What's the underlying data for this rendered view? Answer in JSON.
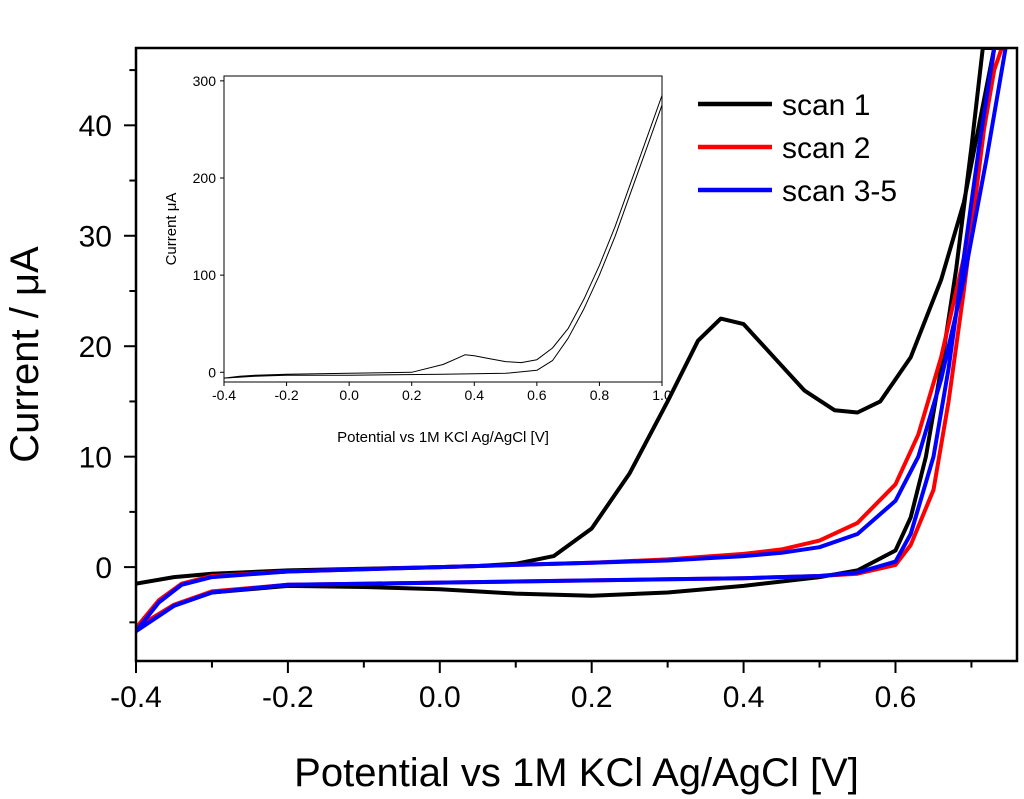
{
  "chart_data": [
    {
      "type": "line",
      "xlabel": "Potential vs 1M KCl Ag/AgCl [V]",
      "ylabel": "Current / μA",
      "xlim": [
        -0.4,
        0.76
      ],
      "ylim": [
        -8.5,
        47
      ],
      "x_ticks": [
        -0.4,
        -0.2,
        0.0,
        0.2,
        0.4,
        0.6
      ],
      "x_tick_labels": [
        "-0.4",
        "-0.2",
        "0.0",
        "0.2",
        "0.4",
        "0.6"
      ],
      "y_ticks": [
        0,
        10,
        20,
        30,
        40
      ],
      "y_tick_labels": [
        "0",
        "10",
        "20",
        "30",
        "40"
      ],
      "grid": false,
      "legend_position": "top-right",
      "series": [
        {
          "name": "scan 1",
          "color": "#000000",
          "points": [
            [
              -0.4,
              -1.5
            ],
            [
              -0.35,
              -0.9
            ],
            [
              -0.3,
              -0.6
            ],
            [
              -0.2,
              -0.3
            ],
            [
              -0.1,
              -0.15
            ],
            [
              0.0,
              0.0
            ],
            [
              0.05,
              0.1
            ],
            [
              0.1,
              0.3
            ],
            [
              0.15,
              1.0
            ],
            [
              0.2,
              3.5
            ],
            [
              0.25,
              8.5
            ],
            [
              0.3,
              15.0
            ],
            [
              0.34,
              20.5
            ],
            [
              0.37,
              22.5
            ],
            [
              0.4,
              22.0
            ],
            [
              0.44,
              19.0
            ],
            [
              0.48,
              16.0
            ],
            [
              0.52,
              14.2
            ],
            [
              0.55,
              14.0
            ],
            [
              0.58,
              15.0
            ],
            [
              0.62,
              19.0
            ],
            [
              0.66,
              26.0
            ],
            [
              0.69,
              33.0
            ],
            [
              0.71,
              40.0
            ],
            [
              0.73,
              47.0
            ],
            [
              0.715,
              47.0
            ],
            [
              0.7,
              38.0
            ],
            [
              0.68,
              27.0
            ],
            [
              0.66,
              18.0
            ],
            [
              0.64,
              10.0
            ],
            [
              0.62,
              4.5
            ],
            [
              0.6,
              1.5
            ],
            [
              0.55,
              -0.3
            ],
            [
              0.5,
              -0.9
            ],
            [
              0.45,
              -1.3
            ],
            [
              0.4,
              -1.7
            ],
            [
              0.3,
              -2.3
            ],
            [
              0.2,
              -2.6
            ],
            [
              0.1,
              -2.4
            ],
            [
              0.0,
              -2.0
            ],
            [
              -0.1,
              -1.8
            ],
            [
              -0.2,
              -1.7
            ],
            [
              -0.3,
              -2.3
            ],
            [
              -0.35,
              -3.5
            ],
            [
              -0.4,
              -5.5
            ]
          ]
        },
        {
          "name": "scan 2",
          "color": "#ff0000",
          "points": [
            [
              -0.4,
              -5.5
            ],
            [
              -0.37,
              -3.0
            ],
            [
              -0.34,
              -1.5
            ],
            [
              -0.3,
              -0.8
            ],
            [
              -0.2,
              -0.4
            ],
            [
              -0.1,
              -0.2
            ],
            [
              0.0,
              0.0
            ],
            [
              0.1,
              0.2
            ],
            [
              0.2,
              0.4
            ],
            [
              0.3,
              0.7
            ],
            [
              0.4,
              1.2
            ],
            [
              0.45,
              1.6
            ],
            [
              0.5,
              2.4
            ],
            [
              0.55,
              4.0
            ],
            [
              0.6,
              7.5
            ],
            [
              0.63,
              12.0
            ],
            [
              0.66,
              19.0
            ],
            [
              0.69,
              28.0
            ],
            [
              0.71,
              37.0
            ],
            [
              0.73,
              45.0
            ],
            [
              0.74,
              47.0
            ],
            [
              0.73,
              47.0
            ],
            [
              0.71,
              36.0
            ],
            [
              0.69,
              25.0
            ],
            [
              0.67,
              15.0
            ],
            [
              0.65,
              7.0
            ],
            [
              0.62,
              2.0
            ],
            [
              0.6,
              0.2
            ],
            [
              0.55,
              -0.6
            ],
            [
              0.5,
              -0.8
            ],
            [
              0.4,
              -1.0
            ],
            [
              0.3,
              -1.1
            ],
            [
              0.2,
              -1.2
            ],
            [
              0.1,
              -1.3
            ],
            [
              0.0,
              -1.4
            ],
            [
              -0.1,
              -1.5
            ],
            [
              -0.2,
              -1.6
            ],
            [
              -0.3,
              -2.2
            ],
            [
              -0.35,
              -3.4
            ],
            [
              -0.4,
              -5.5
            ]
          ]
        },
        {
          "name": "scan 3-5",
          "color": "#0000ff",
          "points": [
            [
              -0.4,
              -5.8
            ],
            [
              -0.37,
              -3.2
            ],
            [
              -0.34,
              -1.6
            ],
            [
              -0.3,
              -0.9
            ],
            [
              -0.2,
              -0.4
            ],
            [
              -0.1,
              -0.2
            ],
            [
              0.0,
              0.0
            ],
            [
              0.1,
              0.2
            ],
            [
              0.2,
              0.4
            ],
            [
              0.3,
              0.6
            ],
            [
              0.4,
              1.0
            ],
            [
              0.45,
              1.3
            ],
            [
              0.5,
              1.8
            ],
            [
              0.55,
              3.0
            ],
            [
              0.6,
              6.0
            ],
            [
              0.63,
              10.0
            ],
            [
              0.66,
              17.0
            ],
            [
              0.69,
              26.0
            ],
            [
              0.72,
              37.0
            ],
            [
              0.745,
              47.0
            ],
            [
              0.73,
              47.0
            ],
            [
              0.71,
              38.0
            ],
            [
              0.69,
              28.0
            ],
            [
              0.67,
              18.0
            ],
            [
              0.65,
              10.0
            ],
            [
              0.62,
              3.0
            ],
            [
              0.6,
              0.5
            ],
            [
              0.55,
              -0.5
            ],
            [
              0.5,
              -0.8
            ],
            [
              0.4,
              -1.0
            ],
            [
              0.3,
              -1.1
            ],
            [
              0.2,
              -1.2
            ],
            [
              0.1,
              -1.3
            ],
            [
              0.0,
              -1.4
            ],
            [
              -0.1,
              -1.5
            ],
            [
              -0.2,
              -1.6
            ],
            [
              -0.3,
              -2.3
            ],
            [
              -0.35,
              -3.5
            ],
            [
              -0.4,
              -5.8
            ]
          ]
        }
      ]
    },
    {
      "type": "line",
      "xlabel": "Potential vs 1M KCl Ag/AgCl [V]",
      "ylabel": "Current μA",
      "xlim": [
        -0.4,
        1.0
      ],
      "ylim": [
        -10,
        305
      ],
      "x_ticks": [
        -0.4,
        -0.2,
        0.0,
        0.2,
        0.4,
        0.6,
        0.8,
        1.0
      ],
      "x_tick_labels": [
        "-0.4",
        "-0.2",
        "0.0",
        "0.2",
        "0.4",
        "0.6",
        "0.8",
        "1.0"
      ],
      "y_ticks": [
        0,
        100,
        200,
        300
      ],
      "y_tick_labels": [
        "0",
        "100",
        "200",
        "300"
      ],
      "grid": false,
      "series": [
        {
          "color": "#000000",
          "points": [
            [
              -0.4,
              -6
            ],
            [
              -0.35,
              -4
            ],
            [
              -0.3,
              -3
            ],
            [
              -0.2,
              -2
            ],
            [
              0.0,
              -1
            ],
            [
              0.2,
              0
            ],
            [
              0.3,
              8
            ],
            [
              0.35,
              15
            ],
            [
              0.37,
              18
            ],
            [
              0.4,
              17
            ],
            [
              0.45,
              14
            ],
            [
              0.5,
              11
            ],
            [
              0.55,
              10
            ],
            [
              0.6,
              13
            ],
            [
              0.65,
              25
            ],
            [
              0.7,
              45
            ],
            [
              0.75,
              75
            ],
            [
              0.8,
              110
            ],
            [
              0.85,
              150
            ],
            [
              0.9,
              195
            ],
            [
              0.95,
              240
            ],
            [
              1.0,
              285
            ],
            [
              1.0,
              275
            ],
            [
              0.95,
              230
            ],
            [
              0.9,
              185
            ],
            [
              0.85,
              140
            ],
            [
              0.8,
              100
            ],
            [
              0.75,
              65
            ],
            [
              0.7,
              35
            ],
            [
              0.65,
              12
            ],
            [
              0.6,
              2
            ],
            [
              0.5,
              -1
            ],
            [
              0.3,
              -2
            ],
            [
              0.0,
              -3
            ],
            [
              -0.2,
              -3
            ],
            [
              -0.3,
              -4
            ],
            [
              -0.4,
              -6
            ]
          ]
        }
      ]
    }
  ]
}
